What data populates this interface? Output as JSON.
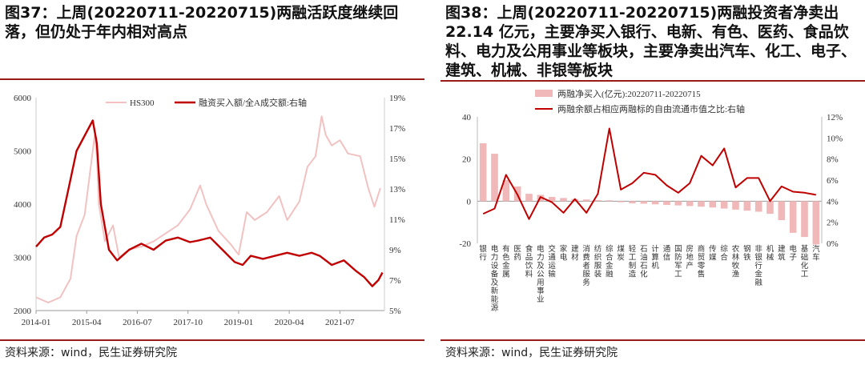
{
  "left": {
    "title": "图37：上周(20220711-20220715)两融活跃度继续回落，但仍处于年内相对高点",
    "source": "资料来源：wind，民生证券研究院",
    "chart_data": {
      "type": "line",
      "legend": [
        "HS300",
        "融资买入额/全A成交额:右轴"
      ],
      "x_ticks": [
        "2014-01",
        "2015-04",
        "2016-07",
        "2017-10",
        "2019-01",
        "2020-04",
        "2021-07"
      ],
      "y_left": {
        "ticks": [
          2000,
          3000,
          4000,
          5000,
          6000
        ],
        "range": [
          2000,
          6000
        ]
      },
      "y_right": {
        "ticks": [
          "5%",
          "7%",
          "9%",
          "11%",
          "13%",
          "15%",
          "17%",
          "19%"
        ],
        "range": [
          5,
          19
        ]
      },
      "series": [
        {
          "name": "HS300",
          "axis": "left",
          "color": "#f2c2c2",
          "points": [
            [
              2014.0,
              2250
            ],
            [
              2014.3,
              2150
            ],
            [
              2014.6,
              2250
            ],
            [
              2014.85,
              2600
            ],
            [
              2015.0,
              3400
            ],
            [
              2015.2,
              3800
            ],
            [
              2015.4,
              5000
            ],
            [
              2015.45,
              5300
            ],
            [
              2015.5,
              4900
            ],
            [
              2015.55,
              4000
            ],
            [
              2015.7,
              3300
            ],
            [
              2015.9,
              3600
            ],
            [
              2016.05,
              3000
            ],
            [
              2016.3,
              3150
            ],
            [
              2016.6,
              3200
            ],
            [
              2016.9,
              3300
            ],
            [
              2017.2,
              3450
            ],
            [
              2017.5,
              3600
            ],
            [
              2017.8,
              3900
            ],
            [
              2018.05,
              4350
            ],
            [
              2018.2,
              4000
            ],
            [
              2018.5,
              3500
            ],
            [
              2018.8,
              3250
            ],
            [
              2019.0,
              3050
            ],
            [
              2019.2,
              3850
            ],
            [
              2019.4,
              3700
            ],
            [
              2019.7,
              3850
            ],
            [
              2020.0,
              4150
            ],
            [
              2020.2,
              3700
            ],
            [
              2020.5,
              4050
            ],
            [
              2020.7,
              4700
            ],
            [
              2020.9,
              4900
            ],
            [
              2021.05,
              5650
            ],
            [
              2021.15,
              5300
            ],
            [
              2021.3,
              5100
            ],
            [
              2021.5,
              5200
            ],
            [
              2021.7,
              4950
            ],
            [
              2022.0,
              4900
            ],
            [
              2022.2,
              4300
            ],
            [
              2022.35,
              3950
            ],
            [
              2022.5,
              4300
            ]
          ]
        },
        {
          "name": "融资买入额/全A成交额:右轴",
          "axis": "right",
          "color": "#c00000",
          "points": [
            [
              2014.0,
              9.2
            ],
            [
              2014.2,
              9.8
            ],
            [
              2014.4,
              10.0
            ],
            [
              2014.6,
              10.5
            ],
            [
              2014.8,
              13.0
            ],
            [
              2015.0,
              15.5
            ],
            [
              2015.2,
              16.5
            ],
            [
              2015.4,
              17.5
            ],
            [
              2015.5,
              16.0
            ],
            [
              2015.6,
              12.0
            ],
            [
              2015.8,
              9.0
            ],
            [
              2016.0,
              8.3
            ],
            [
              2016.3,
              9.0
            ],
            [
              2016.6,
              9.4
            ],
            [
              2016.9,
              9.0
            ],
            [
              2017.2,
              9.6
            ],
            [
              2017.5,
              9.8
            ],
            [
              2017.8,
              9.5
            ],
            [
              2018.0,
              9.6
            ],
            [
              2018.3,
              9.8
            ],
            [
              2018.6,
              9.0
            ],
            [
              2018.9,
              8.2
            ],
            [
              2019.1,
              8.0
            ],
            [
              2019.3,
              8.6
            ],
            [
              2019.6,
              8.4
            ],
            [
              2019.9,
              8.6
            ],
            [
              2020.2,
              8.8
            ],
            [
              2020.5,
              8.6
            ],
            [
              2020.8,
              8.8
            ],
            [
              2021.0,
              8.6
            ],
            [
              2021.3,
              8.0
            ],
            [
              2021.6,
              8.3
            ],
            [
              2021.9,
              7.6
            ],
            [
              2022.1,
              7.2
            ],
            [
              2022.3,
              6.6
            ],
            [
              2022.45,
              7.0
            ],
            [
              2022.55,
              7.5
            ]
          ]
        }
      ]
    }
  },
  "right": {
    "title": "图38：上周(20220711-20220715)两融投资者净卖出 22.14 亿元，主要净买入银行、电新、有色、医药、食品饮料、电力及公用事业等板块，主要净卖出汽车、化工、电子、建筑、机械、非银等板块",
    "source": "资料来源：wind，民生证券研究院",
    "chart_data": {
      "type": "bar",
      "legend": [
        "两融净买入(亿元):20220711-20220715",
        "两融余额占相应两融标的自由流通市值之比:右轴"
      ],
      "categories": [
        "银行",
        "电力设备及新能源",
        "有色金属",
        "医药",
        "食品饮料",
        "电力及公用事业",
        "交通运输",
        "家电",
        "建材",
        "消费者服务",
        "纺织服装",
        "综合金融",
        "煤炭",
        "轻工制造",
        "石油石化",
        "计算机",
        "通信",
        "国防军工",
        "房地产",
        "商贸零售",
        "传媒",
        "综合",
        "农林牧渔",
        "钢铁",
        "非银行金融",
        "机械",
        "建筑",
        "电子",
        "基础化工",
        "汽车"
      ],
      "series": [
        {
          "name": "两融净买入(亿元):20220711-20220715",
          "axis": "left",
          "color": "#f0b8b8",
          "values": [
            27.5,
            22.5,
            10,
            7,
            3.5,
            3,
            2,
            1.5,
            1,
            0.8,
            0.5,
            0.4,
            -0.5,
            -1,
            -1.2,
            -1.5,
            -1.8,
            -2,
            -2.3,
            -2.6,
            -3,
            -3.5,
            -4,
            -4.5,
            -5,
            -6,
            -9,
            -15,
            -17,
            -20.5
          ]
        },
        {
          "name": "两融余额占相应两融标的自由流通市值之比:右轴",
          "axis": "right",
          "color": "#c00000",
          "values": [
            2.8,
            3.3,
            6.5,
            4.6,
            2.3,
            4.4,
            3.9,
            2.9,
            4.2,
            2.9,
            4.7,
            10.9,
            5.1,
            5.7,
            6.7,
            6.5,
            5.5,
            4.8,
            5.7,
            8.3,
            7.4,
            9.0,
            5.3,
            6.2,
            6.2,
            4.0,
            5.4,
            4.9,
            4.8,
            4.6
          ]
        }
      ],
      "y_left": {
        "ticks": [
          -20,
          0,
          20,
          40
        ],
        "range": [
          -20,
          40
        ]
      },
      "y_right": {
        "ticks": [
          "0%",
          "2%",
          "4%",
          "6%",
          "8%",
          "10%",
          "12%"
        ],
        "range": [
          0,
          12
        ]
      }
    }
  }
}
